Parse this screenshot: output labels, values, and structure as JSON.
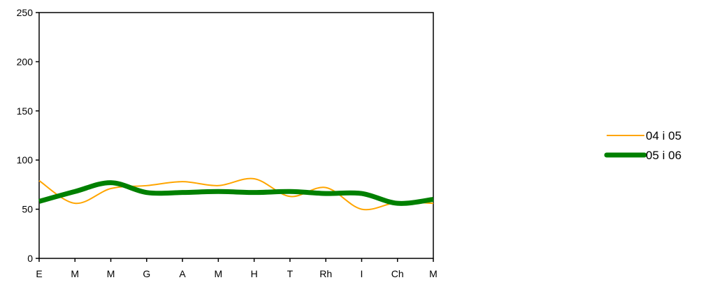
{
  "chart_data": {
    "type": "line",
    "categories": [
      "E",
      "M",
      "M",
      "G",
      "A",
      "M",
      "H",
      "T",
      "Rh",
      "I",
      "Ch",
      "M"
    ],
    "series": [
      {
        "name": "04 i 05",
        "color": "#FFA500",
        "values": [
          79,
          56,
          71,
          74,
          78,
          74,
          81,
          63,
          72,
          50,
          57,
          56
        ]
      },
      {
        "name": "05 i 06",
        "color": "#008000",
        "values": [
          58,
          68,
          77,
          67,
          67,
          68,
          67,
          68,
          66,
          66,
          56,
          60
        ]
      }
    ],
    "ylim": [
      0,
      250
    ],
    "yticks": [
      0,
      50,
      100,
      150,
      200,
      250
    ],
    "ytick_labels": [
      "0",
      "50",
      "100",
      "150",
      "200",
      "250"
    ],
    "title": "",
    "xlabel": "",
    "ylabel": "",
    "grid": false,
    "smooth": true,
    "legend_position": "right"
  }
}
